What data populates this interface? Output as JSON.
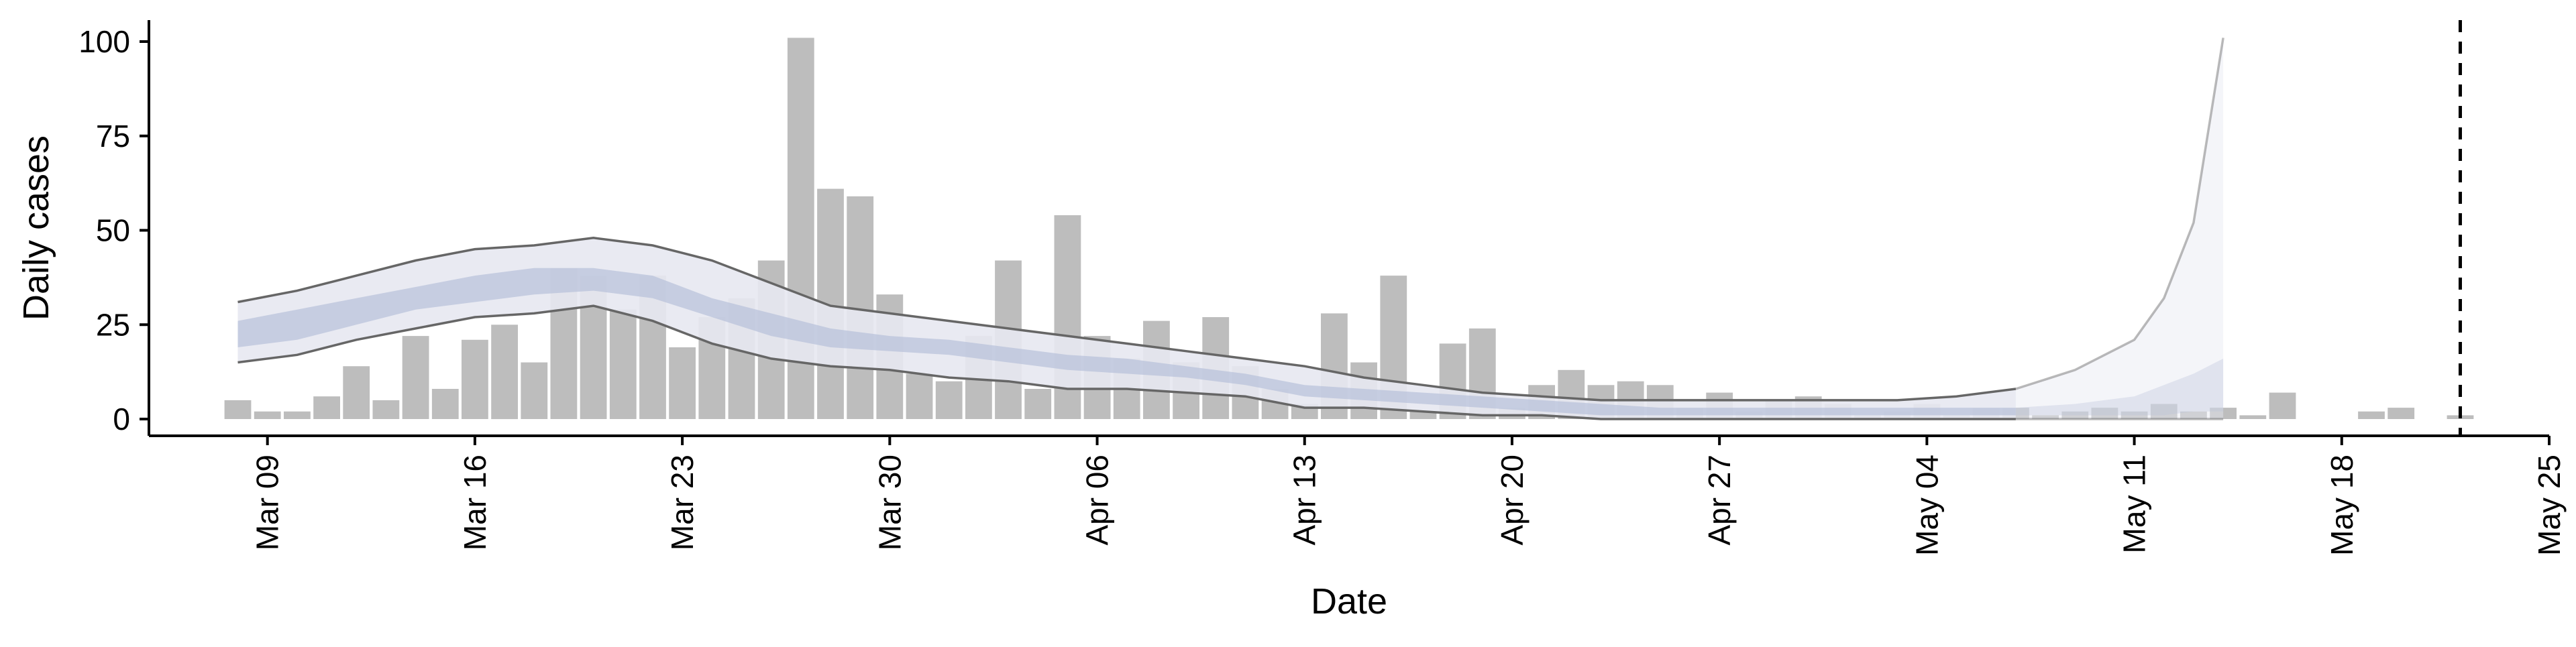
{
  "chart_data": {
    "type": "bar",
    "xlabel": "Date",
    "ylabel": "Daily cases",
    "ylim": [
      0,
      105
    ],
    "y_ticks": [
      0,
      25,
      50,
      75,
      100
    ],
    "x_range": [
      "2020-03-05",
      "2020-05-25"
    ],
    "x_ticks": [
      {
        "date": "2020-03-09",
        "label": "Mar 09"
      },
      {
        "date": "2020-03-16",
        "label": "Mar 16"
      },
      {
        "date": "2020-03-23",
        "label": "Mar 23"
      },
      {
        "date": "2020-03-30",
        "label": "Mar 30"
      },
      {
        "date": "2020-04-06",
        "label": "Apr 06"
      },
      {
        "date": "2020-04-13",
        "label": "Apr 13"
      },
      {
        "date": "2020-04-20",
        "label": "Apr 20"
      },
      {
        "date": "2020-04-27",
        "label": "Apr 27"
      },
      {
        "date": "2020-05-04",
        "label": "May 04"
      },
      {
        "date": "2020-05-11",
        "label": "May 11"
      },
      {
        "date": "2020-05-18",
        "label": "May 18"
      },
      {
        "date": "2020-05-25",
        "label": "May 25"
      }
    ],
    "grid": false,
    "colors": {
      "bars": "#bdbdbd",
      "ribbon_outer": "#e7e8f1",
      "ribbon_inner": "#b9c3db",
      "ci_lines": "#666666",
      "vline": "#000000"
    },
    "series": [
      {
        "values": [
          [
            "2020-03-08",
            5
          ],
          [
            "2020-03-09",
            2
          ],
          [
            "2020-03-10",
            2
          ],
          [
            "2020-03-11",
            6
          ],
          [
            "2020-03-12",
            14
          ],
          [
            "2020-03-13",
            5
          ],
          [
            "2020-03-14",
            22
          ],
          [
            "2020-03-15",
            8
          ],
          [
            "2020-03-16",
            21
          ],
          [
            "2020-03-17",
            25
          ],
          [
            "2020-03-18",
            15
          ],
          [
            "2020-03-19",
            40
          ],
          [
            "2020-03-20",
            38
          ],
          [
            "2020-03-21",
            29
          ],
          [
            "2020-03-22",
            38
          ],
          [
            "2020-03-23",
            19
          ],
          [
            "2020-03-24",
            27
          ],
          [
            "2020-03-25",
            32
          ],
          [
            "2020-03-26",
            42
          ],
          [
            "2020-03-27",
            101
          ],
          [
            "2020-03-28",
            61
          ],
          [
            "2020-03-29",
            59
          ],
          [
            "2020-03-30",
            33
          ],
          [
            "2020-03-31",
            12
          ],
          [
            "2020-04-01",
            10
          ],
          [
            "2020-04-02",
            22
          ],
          [
            "2020-04-03",
            42
          ],
          [
            "2020-04-04",
            8
          ],
          [
            "2020-04-05",
            54
          ],
          [
            "2020-04-06",
            22
          ],
          [
            "2020-04-07",
            16
          ],
          [
            "2020-04-08",
            26
          ],
          [
            "2020-04-09",
            15
          ],
          [
            "2020-04-10",
            27
          ],
          [
            "2020-04-11",
            14
          ],
          [
            "2020-04-12",
            8
          ],
          [
            "2020-04-13",
            4
          ],
          [
            "2020-04-14",
            28
          ],
          [
            "2020-04-15",
            15
          ],
          [
            "2020-04-16",
            38
          ],
          [
            "2020-04-17",
            2
          ],
          [
            "2020-04-18",
            20
          ],
          [
            "2020-04-19",
            24
          ],
          [
            "2020-04-20",
            3
          ],
          [
            "2020-04-21",
            9
          ],
          [
            "2020-04-22",
            13
          ],
          [
            "2020-04-23",
            9
          ],
          [
            "2020-04-24",
            10
          ],
          [
            "2020-04-25",
            9
          ],
          [
            "2020-04-26",
            3
          ],
          [
            "2020-04-27",
            7
          ],
          [
            "2020-04-28",
            2
          ],
          [
            "2020-04-29",
            5
          ],
          [
            "2020-04-30",
            6
          ],
          [
            "2020-05-01",
            4
          ],
          [
            "2020-05-02",
            1
          ],
          [
            "2020-05-03",
            2
          ],
          [
            "2020-05-04",
            4
          ],
          [
            "2020-05-05",
            1
          ],
          [
            "2020-05-06",
            3
          ],
          [
            "2020-05-07",
            3
          ],
          [
            "2020-05-08",
            1
          ],
          [
            "2020-05-09",
            2
          ],
          [
            "2020-05-10",
            3
          ],
          [
            "2020-05-11",
            2
          ],
          [
            "2020-05-12",
            4
          ],
          [
            "2020-05-13",
            2
          ],
          [
            "2020-05-14",
            3
          ],
          [
            "2020-05-15",
            1
          ],
          [
            "2020-05-16",
            7
          ],
          [
            "2020-05-19",
            2
          ],
          [
            "2020-05-20",
            3
          ],
          [
            "2020-05-22",
            1
          ]
        ]
      },
      {
        "dates": [
          "2020-03-08",
          "2020-03-10",
          "2020-03-12",
          "2020-03-14",
          "2020-03-16",
          "2020-03-18",
          "2020-03-20",
          "2020-03-22",
          "2020-03-24",
          "2020-03-26",
          "2020-03-28",
          "2020-03-30",
          "2020-04-01",
          "2020-04-03",
          "2020-04-05",
          "2020-04-07",
          "2020-04-09",
          "2020-04-11",
          "2020-04-13",
          "2020-04-15",
          "2020-04-17",
          "2020-04-19",
          "2020-04-21",
          "2020-04-23",
          "2020-04-25",
          "2020-04-27",
          "2020-04-29",
          "2020-05-01",
          "2020-05-03",
          "2020-05-05",
          "2020-05-07",
          "2020-05-09",
          "2020-05-11",
          "2020-05-12",
          "2020-05-13",
          "2020-05-14"
        ],
        "upper_90": [
          31,
          34,
          38,
          42,
          45,
          46,
          48,
          46,
          42,
          36,
          30,
          28,
          26,
          24,
          22,
          20,
          18,
          16,
          14,
          11,
          9,
          7,
          6,
          5,
          5,
          5,
          5,
          5,
          5,
          6,
          8,
          13,
          21,
          32,
          52,
          101
        ],
        "lower_90": [
          15,
          17,
          21,
          24,
          27,
          28,
          30,
          26,
          20,
          16,
          14,
          13,
          11,
          10,
          8,
          8,
          7,
          6,
          3,
          3,
          2,
          1,
          1,
          0,
          0,
          0,
          0,
          0,
          0,
          0,
          0,
          0,
          0,
          0,
          0,
          0
        ],
        "upper_50": [
          26,
          29,
          32,
          35,
          38,
          40,
          40,
          38,
          32,
          28,
          24,
          22,
          21,
          19,
          17,
          16,
          14,
          12,
          9,
          8,
          7,
          6,
          5,
          4,
          3,
          3,
          3,
          3,
          3,
          3,
          3,
          4,
          6,
          9,
          12,
          16
        ],
        "lower_50": [
          19,
          21,
          25,
          29,
          31,
          33,
          34,
          32,
          27,
          22,
          19,
          18,
          17,
          15,
          13,
          12,
          11,
          9,
          6,
          5,
          4,
          3,
          2,
          1,
          1,
          1,
          1,
          1,
          1,
          1,
          1,
          1,
          1,
          1,
          2,
          2
        ],
        "projection_from": "2020-05-07"
      }
    ],
    "vline": "2020-05-22"
  }
}
